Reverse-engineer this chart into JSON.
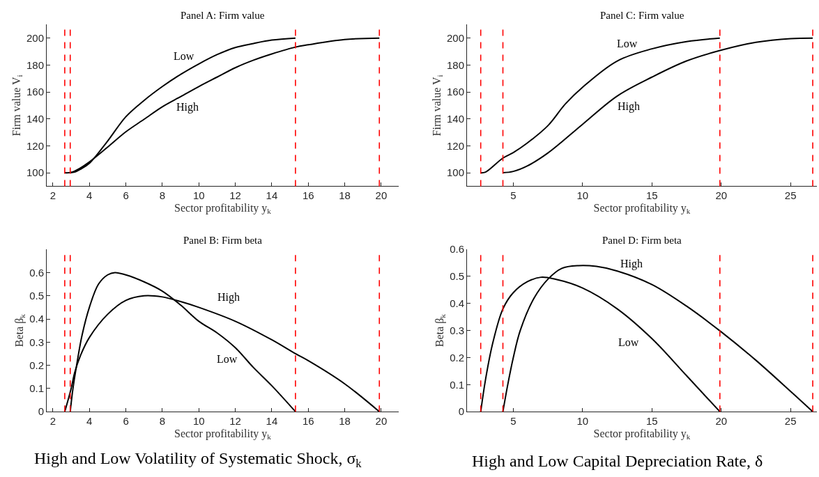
{
  "chart_data": [
    {
      "type": "line",
      "title": "Panel A: Firm value",
      "xlabel": "Sector profitability y$_{k}$",
      "ylabel": "Firm value V$_{i}$",
      "xlim": [
        1.66,
        20.96
      ],
      "xticks": [
        2,
        4,
        6,
        8,
        10,
        12,
        14,
        16,
        18,
        20
      ],
      "ylim": [
        90,
        210
      ],
      "yticks": [
        100,
        120,
        140,
        160,
        180,
        200
      ],
      "line_style": "solid",
      "series": [
        {
          "name": "Low",
          "color": "#000000",
          "x": [
            2.95,
            3.2,
            3.5,
            4,
            5,
            6,
            7,
            8,
            9,
            10,
            11,
            12,
            13,
            14,
            15.3
          ],
          "values": [
            100,
            100.5,
            102.5,
            107,
            123.5,
            141.6,
            153.7,
            164,
            173,
            180.8,
            187.7,
            193,
            196,
            198.5,
            200
          ]
        },
        {
          "name": "High",
          "color": "#000000",
          "x": [
            2.65,
            3.0,
            3.5,
            4,
            5,
            6,
            7,
            8,
            9,
            10,
            11,
            12,
            13,
            14,
            15.3,
            16,
            18,
            19.9
          ],
          "values": [
            100,
            100.3,
            103.5,
            108,
            119,
            130.4,
            139.7,
            149,
            156.5,
            164,
            171,
            178,
            183.6,
            188.2,
            193.3,
            195,
            198.9,
            200
          ]
        }
      ],
      "ref_lines": [
        {
          "axis": "x",
          "value": 2.65,
          "color": "#ff0000",
          "line_style": "dashed"
        },
        {
          "axis": "x",
          "value": 2.95,
          "color": "#ff0000",
          "line_style": "dashed"
        },
        {
          "axis": "x",
          "value": 15.3,
          "color": "#ff0000",
          "line_style": "dashed"
        },
        {
          "axis": "x",
          "value": 19.9,
          "color": "#ff0000",
          "line_style": "dashed"
        }
      ]
    },
    {
      "type": "line",
      "title": "Panel C: Firm value",
      "xlabel": "Sector profitability y$_{k}$",
      "ylabel": "Firm value V$_{i}$",
      "xlim": [
        1.66,
        26.9
      ],
      "xticks": [
        5,
        10,
        15,
        20,
        25
      ],
      "ylim": [
        90,
        210
      ],
      "yticks": [
        100,
        120,
        140,
        160,
        180,
        200
      ],
      "line_style": "solid",
      "series": [
        {
          "name": "Low",
          "color": "#000000",
          "x": [
            2.65,
            3,
            4.25,
            5,
            6,
            7.5,
            8.75,
            10,
            12.5,
            15,
            17.5,
            19.9
          ],
          "values": [
            100,
            100.5,
            110.9,
            115,
            122,
            135,
            151,
            163.5,
            183,
            192,
            197.4,
            200
          ]
        },
        {
          "name": "High",
          "color": "#000000",
          "x": [
            4.25,
            5,
            6,
            7.5,
            10,
            12.5,
            15,
            17.5,
            20,
            22.5,
            25,
            26.6
          ],
          "values": [
            100,
            101,
            105,
            114.7,
            136,
            157,
            171,
            183,
            191,
            196.8,
            199.6,
            200
          ]
        }
      ],
      "ref_lines": [
        {
          "axis": "x",
          "value": 2.65,
          "color": "#ff0000",
          "line_style": "dashed"
        },
        {
          "axis": "x",
          "value": 4.25,
          "color": "#ff0000",
          "line_style": "dashed"
        },
        {
          "axis": "x",
          "value": 19.9,
          "color": "#ff0000",
          "line_style": "dashed"
        },
        {
          "axis": "x",
          "value": 26.6,
          "color": "#ff0000",
          "line_style": "dashed"
        }
      ]
    },
    {
      "type": "line",
      "title": "Panel B: Firm beta",
      "xlabel": "Sector profitability y$_{k}$",
      "ylabel": "Beta β$_{k}$",
      "xlim": [
        1.66,
        20.96
      ],
      "xticks": [
        2,
        4,
        6,
        8,
        10,
        12,
        14,
        16,
        18,
        20
      ],
      "ylim": [
        0,
        0.7
      ],
      "yticks": [
        0,
        0.1,
        0.2,
        0.3,
        0.4,
        0.5,
        0.6
      ],
      "line_style": "solid",
      "series": [
        {
          "name": "Low",
          "color": "#000000",
          "x": [
            2.95,
            3.1,
            3.3,
            3.6,
            4,
            4.5,
            5,
            5.4,
            6,
            7,
            8,
            9,
            10,
            11,
            12,
            13,
            14,
            15.3
          ],
          "values": [
            0,
            0.1,
            0.2,
            0.33,
            0.45,
            0.55,
            0.59,
            0.6,
            0.59,
            0.56,
            0.52,
            0.46,
            0.39,
            0.34,
            0.276,
            0.19,
            0.112,
            0
          ]
        },
        {
          "name": "High",
          "color": "#000000",
          "x": [
            2.65,
            3,
            3.2,
            3.5,
            4,
            5,
            6,
            7,
            8,
            9,
            10,
            12,
            14,
            15.3,
            16,
            18,
            19.9
          ],
          "values": [
            0,
            0.1,
            0.17,
            0.24,
            0.32,
            0.42,
            0.48,
            0.5,
            0.495,
            0.475,
            0.45,
            0.39,
            0.31,
            0.25,
            0.22,
            0.12,
            0
          ]
        }
      ],
      "ref_lines": [
        {
          "axis": "x",
          "value": 2.65,
          "color": "#ff0000",
          "line_style": "dashed"
        },
        {
          "axis": "x",
          "value": 2.95,
          "color": "#ff0000",
          "line_style": "dashed"
        },
        {
          "axis": "x",
          "value": 15.3,
          "color": "#ff0000",
          "line_style": "dashed"
        },
        {
          "axis": "x",
          "value": 19.9,
          "color": "#ff0000",
          "line_style": "dashed"
        }
      ],
      "annotations": [
        "High and Low Volatility of Systematic Shock, σ$_{k}$"
      ]
    },
    {
      "type": "line",
      "title": "Panel D: Firm beta",
      "xlabel": "Sector profitability y$_{k}$",
      "ylabel": "Beta β$_{k}$",
      "xlim": [
        1.66,
        26.9
      ],
      "xticks": [
        5,
        10,
        15,
        20,
        25
      ],
      "ylim": [
        0,
        0.6
      ],
      "yticks": [
        0,
        0.1,
        0.2,
        0.3,
        0.4,
        0.5,
        0.6
      ],
      "line_style": "solid",
      "series": [
        {
          "name": "Low",
          "color": "#000000",
          "x": [
            2.65,
            3,
            3.5,
            4.25,
            5,
            6,
            7,
            8,
            10,
            12.5,
            15,
            17.5,
            19.9
          ],
          "values": [
            0,
            0.12,
            0.25,
            0.38,
            0.44,
            0.48,
            0.497,
            0.49,
            0.457,
            0.38,
            0.27,
            0.133,
            0
          ]
        },
        {
          "name": "High",
          "color": "#000000",
          "x": [
            4.25,
            4.6,
            5,
            5.5,
            6.5,
            7.5,
            8.5,
            9.7,
            11,
            12.5,
            15,
            17.5,
            20,
            22.5,
            25,
            26.6
          ],
          "values": [
            0,
            0.1,
            0.2,
            0.3,
            0.42,
            0.49,
            0.53,
            0.54,
            0.537,
            0.52,
            0.47,
            0.39,
            0.295,
            0.19,
            0.075,
            0
          ]
        }
      ],
      "ref_lines": [
        {
          "axis": "x",
          "value": 2.65,
          "color": "#ff0000",
          "line_style": "dashed"
        },
        {
          "axis": "x",
          "value": 4.25,
          "color": "#ff0000",
          "line_style": "dashed"
        },
        {
          "axis": "x",
          "value": 19.9,
          "color": "#ff0000",
          "line_style": "dashed"
        },
        {
          "axis": "x",
          "value": 26.6,
          "color": "#ff0000",
          "line_style": "dashed"
        }
      ],
      "annotations": [
        "High and Low Capital Depreciation Rate, δ"
      ]
    }
  ]
}
